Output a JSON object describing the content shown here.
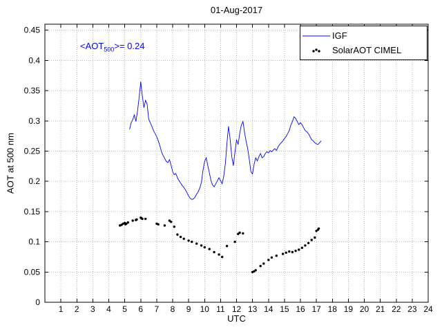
{
  "chart_data": {
    "type": "line",
    "title": "01-Aug-2017",
    "xlabel": "UTC",
    "ylabel": "AOT at 500 nm",
    "xlim": [
      0,
      24
    ],
    "ylim": [
      0,
      0.46
    ],
    "x_tick_values": [
      1,
      2,
      3,
      4,
      5,
      6,
      7,
      8,
      9,
      10,
      11,
      12,
      13,
      14,
      15,
      16,
      17,
      18,
      19,
      20,
      21,
      22,
      23,
      24
    ],
    "x_tick_labels": [
      "1",
      "2",
      "3",
      "4",
      "5",
      "6",
      "7",
      "8",
      "9",
      "10",
      "11",
      "12",
      "13",
      "14",
      "15",
      "16",
      "17",
      "18",
      "19",
      "20",
      "21",
      "22",
      "23",
      "24"
    ],
    "y_tick_values": [
      0,
      0.05,
      0.1,
      0.15,
      0.2,
      0.25,
      0.3,
      0.35,
      0.4,
      0.45
    ],
    "y_tick_labels": [
      "0",
      "0.05",
      "0.1",
      "0.15",
      "0.2",
      "0.25",
      "0.3",
      "0.35",
      "0.4",
      "0.45"
    ],
    "grid": true,
    "grid_color": "#b5b5b5",
    "legend": {
      "position": "top-right",
      "entries": [
        "IGF",
        "SolarAOT CIMEL"
      ]
    },
    "annotation": {
      "prefix": "<AOT",
      "sub": "500",
      "suffix": ">= 0.24",
      "value": 0.24,
      "color": "#0000ff",
      "x": 2.4,
      "y": 0.423
    },
    "series": [
      {
        "name": "IGF",
        "type": "line",
        "color": "#0000ff",
        "x_start": 5.3,
        "x_step": 0.1,
        "y": [
          0.286,
          0.297,
          0.302,
          0.31,
          0.299,
          0.316,
          0.338,
          0.365,
          0.341,
          0.322,
          0.334,
          0.328,
          0.303,
          0.297,
          0.291,
          0.284,
          0.279,
          0.274,
          0.267,
          0.259,
          0.249,
          0.243,
          0.238,
          0.233,
          0.231,
          0.236,
          0.227,
          0.216,
          0.211,
          0.213,
          0.206,
          0.201,
          0.197,
          0.193,
          0.19,
          0.186,
          0.181,
          0.176,
          0.172,
          0.17,
          0.171,
          0.174,
          0.179,
          0.183,
          0.189,
          0.198,
          0.218,
          0.233,
          0.239,
          0.226,
          0.214,
          0.201,
          0.194,
          0.191,
          0.196,
          0.201,
          0.206,
          0.201,
          0.196,
          0.209,
          0.229,
          0.263,
          0.291,
          0.269,
          0.241,
          0.226,
          0.248,
          0.269,
          0.261,
          0.279,
          0.293,
          0.299,
          0.281,
          0.266,
          0.254,
          0.236,
          0.216,
          0.212,
          0.228,
          0.239,
          0.234,
          0.241,
          0.246,
          0.239,
          0.241,
          0.246,
          0.249,
          0.247,
          0.251,
          0.249,
          0.252,
          0.254,
          0.251,
          0.257,
          0.261,
          0.264,
          0.267,
          0.271,
          0.274,
          0.279,
          0.284,
          0.293,
          0.299,
          0.307,
          0.304,
          0.299,
          0.294,
          0.297,
          0.294,
          0.289,
          0.284,
          0.282,
          0.279,
          0.274,
          0.269,
          0.267,
          0.264,
          0.262,
          0.261,
          0.264,
          0.267
        ]
      },
      {
        "name": "SolarAOT CIMEL",
        "type": "scatter",
        "color": "#000000",
        "x": [
          4.7,
          4.8,
          4.9,
          5.0,
          5.05,
          5.1,
          5.2,
          5.5,
          5.7,
          5.75,
          6.0,
          6.05,
          6.1,
          6.3,
          7.0,
          7.1,
          7.5,
          7.8,
          7.9,
          8.1,
          8.3,
          8.5,
          8.7,
          9.0,
          9.2,
          9.5,
          9.8,
          10.0,
          10.3,
          10.6,
          10.9,
          11.1,
          11.4,
          11.9,
          12.1,
          12.2,
          12.4,
          13.0,
          13.1,
          13.2,
          13.5,
          13.7,
          14.0,
          14.2,
          14.5,
          14.9,
          15.1,
          15.3,
          15.5,
          15.7,
          15.9,
          16.1,
          16.3,
          16.5,
          16.7,
          16.9,
          17.0,
          17.1,
          17.15
        ],
        "y": [
          0.127,
          0.128,
          0.13,
          0.131,
          0.129,
          0.13,
          0.132,
          0.135,
          0.136,
          0.137,
          0.14,
          0.139,
          0.138,
          0.138,
          0.13,
          0.129,
          0.127,
          0.135,
          0.133,
          0.125,
          0.112,
          0.108,
          0.105,
          0.102,
          0.1,
          0.097,
          0.094,
          0.091,
          0.088,
          0.083,
          0.079,
          0.075,
          0.093,
          0.1,
          0.113,
          0.115,
          0.114,
          0.05,
          0.051,
          0.053,
          0.06,
          0.064,
          0.07,
          0.074,
          0.077,
          0.08,
          0.082,
          0.084,
          0.083,
          0.085,
          0.087,
          0.09,
          0.094,
          0.098,
          0.103,
          0.107,
          0.118,
          0.12,
          0.122
        ]
      }
    ]
  }
}
